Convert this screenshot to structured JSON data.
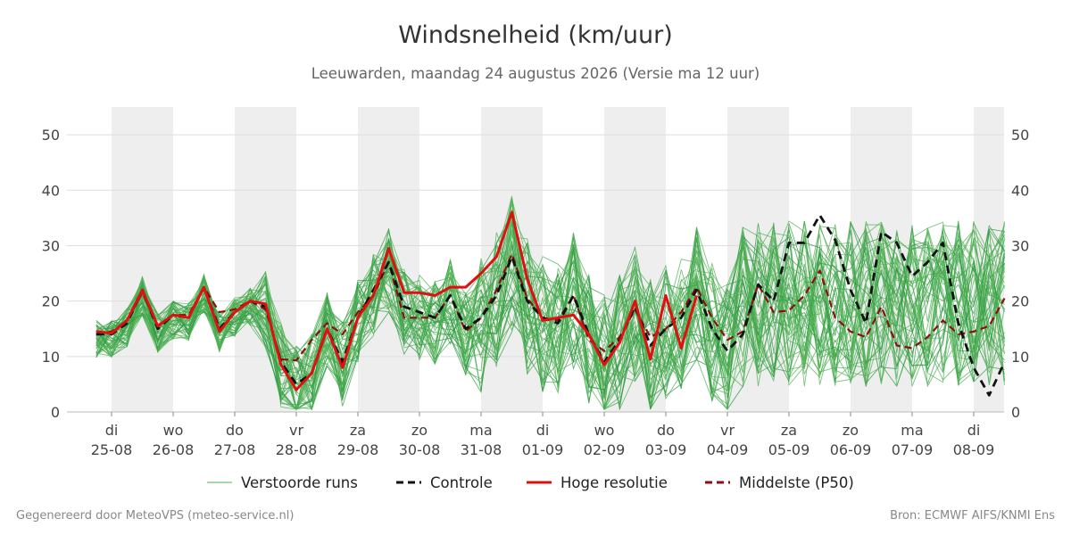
{
  "title": "Windsnelheid (km/uur)",
  "subtitle": "Leeuwarden, maandag 24 augustus 2026 (Versie ma 12 uur)",
  "footer": {
    "left": "Gegenereerd door MeteoVPS (meteo-service.nl)",
    "right": "Bron: ECMWF AIFS/KNMI Ens"
  },
  "chart_data": {
    "type": "line",
    "y_ticks": [
      0,
      10,
      20,
      30,
      40,
      50
    ],
    "ylim": [
      0,
      55
    ],
    "x_unit": "day index from 25-08 (0) to 08-09 (14)",
    "xlim": [
      -0.7,
      14.5
    ],
    "x_ticks": [
      {
        "day": "di",
        "date": "25-08"
      },
      {
        "day": "wo",
        "date": "26-08"
      },
      {
        "day": "do",
        "date": "27-08"
      },
      {
        "day": "vr",
        "date": "28-08"
      },
      {
        "day": "za",
        "date": "29-08"
      },
      {
        "day": "zo",
        "date": "30-08"
      },
      {
        "day": "ma",
        "date": "31-08"
      },
      {
        "day": "di",
        "date": "01-09"
      },
      {
        "day": "wo",
        "date": "02-09"
      },
      {
        "day": "do",
        "date": "03-09"
      },
      {
        "day": "vr",
        "date": "04-09"
      },
      {
        "day": "za",
        "date": "05-09"
      },
      {
        "day": "zo",
        "date": "06-09"
      },
      {
        "day": "ma",
        "date": "07-09"
      },
      {
        "day": "di",
        "date": "08-09"
      }
    ],
    "shaded_bands": [
      [
        0,
        1
      ],
      [
        2,
        3
      ],
      [
        4,
        5
      ],
      [
        6,
        7
      ],
      [
        8,
        9
      ],
      [
        10,
        11
      ],
      [
        12,
        13
      ],
      [
        14,
        14.5
      ]
    ],
    "legend": [
      {
        "label": "Verstoorde runs",
        "color": "#4caf50",
        "style": "thin"
      },
      {
        "label": "Controle",
        "color": "#111111",
        "style": "dashed"
      },
      {
        "label": "Hoge resolutie",
        "color": "#e01010",
        "style": "thick"
      },
      {
        "label": "Middelste (P50)",
        "color": "#8b1010",
        "style": "dashed"
      }
    ],
    "series": [
      {
        "key": "hoge_resolutie",
        "color": "#e01010",
        "x": [
          -0.25,
          0,
          0.25,
          0.5,
          0.75,
          1,
          1.25,
          1.5,
          1.75,
          2,
          2.25,
          2.5,
          2.75,
          3,
          3.25,
          3.5,
          3.75,
          4,
          4.25,
          4.5,
          4.75,
          5,
          5.25,
          5.5,
          5.75,
          6,
          6.25,
          6.5,
          6.75,
          7,
          7.25,
          7.5,
          7.75,
          8,
          8.25,
          8.5,
          8.75,
          9,
          9.25,
          9.5
        ],
        "values": [
          14.5,
          14.2,
          16.5,
          22,
          15.5,
          17.5,
          17,
          22.5,
          14.5,
          18,
          20,
          19.5,
          8.5,
          4,
          7,
          15,
          8,
          17,
          21,
          29.5,
          21.5,
          21.5,
          21,
          22.5,
          22.5,
          25,
          28,
          36,
          24,
          16.5,
          17,
          17.5,
          14,
          8.5,
          12.5,
          20,
          9.5,
          21,
          11.5,
          21
        ]
      },
      {
        "key": "controle",
        "color": "#111111",
        "x": [
          -0.25,
          0,
          0.25,
          0.5,
          0.75,
          1,
          1.25,
          1.5,
          1.75,
          2,
          2.25,
          2.5,
          2.75,
          3,
          3.25,
          3.5,
          3.75,
          4,
          4.25,
          4.5,
          4.75,
          5,
          5.25,
          5.5,
          5.75,
          6,
          6.25,
          6.5,
          6.75,
          7,
          7.25,
          7.5,
          7.75,
          8,
          8.25,
          8.5,
          8.75,
          9,
          9.25,
          9.5,
          9.75,
          10,
          10.25,
          10.5,
          10.75,
          11,
          11.25,
          11.5,
          11.75,
          12,
          12.25,
          12.5,
          12.75,
          13,
          13.25,
          13.5,
          13.75,
          14,
          14.25,
          14.5
        ],
        "values": [
          14,
          14,
          16,
          22,
          15,
          17.5,
          17,
          22.5,
          15,
          18,
          20,
          19,
          9,
          5,
          7,
          15,
          9,
          17,
          22,
          27,
          19,
          18,
          17,
          21,
          15,
          17,
          21,
          28,
          20,
          17,
          16,
          21,
          14,
          9,
          13,
          19,
          12,
          15,
          17,
          22,
          15,
          11,
          14,
          23,
          20,
          30.5,
          30.5,
          35.5,
          31,
          22,
          16,
          32.5,
          30.5,
          24.5,
          27,
          30.5,
          16,
          8,
          3,
          9
        ]
      },
      {
        "key": "p50",
        "color": "#8b1010",
        "x": [
          -0.25,
          0,
          0.25,
          0.5,
          0.75,
          1,
          1.25,
          1.5,
          1.75,
          2,
          2.25,
          2.5,
          2.75,
          3,
          3.25,
          3.5,
          3.75,
          4,
          4.25,
          4.5,
          4.75,
          5,
          5.25,
          5.5,
          5.75,
          6,
          6.25,
          6.5,
          6.75,
          7,
          7.25,
          7.5,
          7.75,
          8,
          8.25,
          8.5,
          8.75,
          9,
          9.25,
          9.5,
          9.75,
          10,
          10.25,
          10.5,
          10.75,
          11,
          11.25,
          11.5,
          11.75,
          12,
          12.25,
          12.5,
          12.75,
          13,
          13.25,
          13.5,
          13.75,
          14,
          14.25,
          14.5
        ],
        "values": [
          14,
          14.5,
          16.5,
          21.5,
          15.5,
          17.5,
          17.5,
          22.5,
          18,
          18.5,
          20,
          18.5,
          9.5,
          9.3,
          13,
          16,
          14,
          18,
          21,
          27,
          17,
          17,
          17,
          21,
          14.5,
          17,
          22,
          28.5,
          20.5,
          17,
          16.5,
          21,
          13,
          11,
          13.5,
          18.5,
          13.5,
          15,
          18,
          22.5,
          17,
          13,
          14.5,
          23,
          18,
          18.3,
          21,
          25.5,
          17,
          14.5,
          13.5,
          19,
          12,
          11.5,
          13.5,
          16.5,
          14,
          14.5,
          15.5,
          20.5
        ]
      }
    ]
  }
}
